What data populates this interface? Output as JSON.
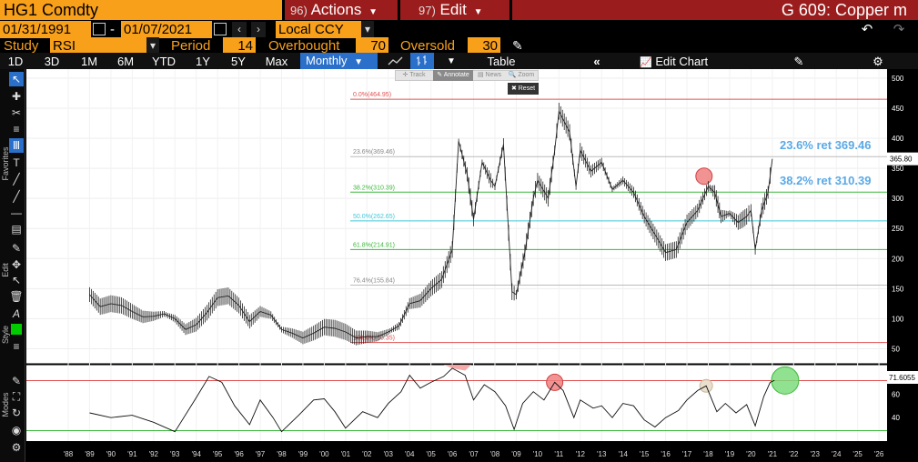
{
  "header": {
    "ticker": "HG1 Comdty",
    "actions_num": "96)",
    "actions_label": "Actions",
    "edit_num": "97)",
    "edit_label": "Edit",
    "title": "G 609: Copper m"
  },
  "range": {
    "start": "01/31/1991",
    "separator": "-",
    "end": "01/07/2021",
    "currency": "Local CCY"
  },
  "study": {
    "label": "Study",
    "name": "RSI",
    "period_label": "Period",
    "period": "14",
    "overbought_label": "Overbought",
    "overbought": "70",
    "oversold_label": "Oversold",
    "oversold": "30"
  },
  "toolbar": {
    "periods": [
      "1D",
      "3D",
      "1M",
      "6M",
      "YTD",
      "1Y",
      "5Y",
      "Max"
    ],
    "frequency": "Monthly",
    "table_label": "Table",
    "edit_chart_label": "Edit Chart"
  },
  "chart_tools": {
    "track": "Track",
    "annotate": "Annotate",
    "news": "News",
    "zoom": "Zoom",
    "reset": "Reset"
  },
  "sidebar": {
    "favorites": "Favorites",
    "edit": "Edit",
    "style": "Style",
    "modes": "Modes"
  },
  "chart_data": {
    "type": "line",
    "price_axis": {
      "ticks": [
        50,
        100,
        150,
        200,
        250,
        300,
        350,
        400,
        450,
        500
      ],
      "range": [
        25,
        515
      ]
    },
    "rsi_axis": {
      "ticks": [
        40,
        60
      ],
      "range": [
        20,
        85
      ]
    },
    "x_ticks": [
      "'88",
      "'89",
      "'90",
      "'91",
      "'92",
      "'93",
      "'94",
      "'95",
      "'96",
      "'97",
      "'98",
      "'99",
      "'00",
      "'01",
      "'02",
      "'03",
      "'04",
      "'05",
      "'06",
      "'07",
      "'08",
      "'09",
      "'10",
      "'11",
      "'12",
      "'13",
      "'14",
      "'15",
      "'16",
      "'17",
      "'18",
      "'19",
      "'20",
      "'21",
      "'22",
      "'23",
      "'24",
      "'25",
      "'26"
    ],
    "last_price": "365.80",
    "last_rsi": "71.6055",
    "fib_levels": [
      {
        "label": "0.0%(464.95)",
        "value": 464.95,
        "color": "#e05050"
      },
      {
        "label": "23.6%(369.46)",
        "value": 369.46,
        "color": "#bbbbbb"
      },
      {
        "label": "38.2%(310.39)",
        "value": 310.39,
        "color": "#3cb83c"
      },
      {
        "label": "50.0%(262.65)",
        "value": 262.65,
        "color": "#40c8d8"
      },
      {
        "label": "61.8%(214.91)",
        "value": 214.91,
        "color": "#3cb83c"
      },
      {
        "label": "76.4%(155.84)",
        "value": 155.84,
        "color": "#bbbbbb"
      },
      {
        "label": "100.0%(60.35)",
        "value": 60.35,
        "color": "#e05050"
      }
    ],
    "annotations": [
      "23.6% ret 369.46",
      "38.2% ret 310.39"
    ],
    "rsi_levels": {
      "overbought": 70,
      "oversold": 30
    },
    "price_series": [
      [
        1989,
        140
      ],
      [
        1989.5,
        120
      ],
      [
        1990,
        125
      ],
      [
        1990.5,
        122
      ],
      [
        1991,
        112
      ],
      [
        1991.5,
        103
      ],
      [
        1992,
        104
      ],
      [
        1992.5,
        108
      ],
      [
        1993,
        100
      ],
      [
        1993.5,
        82
      ],
      [
        1994,
        90
      ],
      [
        1994.5,
        110
      ],
      [
        1995,
        135
      ],
      [
        1995.5,
        138
      ],
      [
        1996,
        122
      ],
      [
        1996.5,
        95
      ],
      [
        1997,
        112
      ],
      [
        1997.5,
        106
      ],
      [
        1998,
        82
      ],
      [
        1998.5,
        76
      ],
      [
        1999,
        68
      ],
      [
        1999.5,
        76
      ],
      [
        2000,
        86
      ],
      [
        2000.5,
        84
      ],
      [
        2001,
        78
      ],
      [
        2001.5,
        68
      ],
      [
        2002,
        70
      ],
      [
        2002.5,
        70
      ],
      [
        2003,
        78
      ],
      [
        2003.5,
        88
      ],
      [
        2004,
        125
      ],
      [
        2004.5,
        130
      ],
      [
        2005,
        150
      ],
      [
        2005.5,
        165
      ],
      [
        2006,
        215
      ],
      [
        2006.3,
        395
      ],
      [
        2006.7,
        340
      ],
      [
        2007,
        265
      ],
      [
        2007.4,
        360
      ],
      [
        2007.8,
        330
      ],
      [
        2008,
        320
      ],
      [
        2008.4,
        390
      ],
      [
        2008.8,
        145
      ],
      [
        2009,
        140
      ],
      [
        2009.4,
        210
      ],
      [
        2009.8,
        300
      ],
      [
        2010,
        330
      ],
      [
        2010.5,
        300
      ],
      [
        2010.8,
        380
      ],
      [
        2011,
        445
      ],
      [
        2011.5,
        410
      ],
      [
        2011.8,
        320
      ],
      [
        2012,
        380
      ],
      [
        2012.5,
        345
      ],
      [
        2013,
        360
      ],
      [
        2013.5,
        315
      ],
      [
        2014,
        330
      ],
      [
        2014.5,
        310
      ],
      [
        2015,
        270
      ],
      [
        2015.5,
        240
      ],
      [
        2016,
        210
      ],
      [
        2016.5,
        215
      ],
      [
        2017,
        260
      ],
      [
        2017.5,
        280
      ],
      [
        2018,
        320
      ],
      [
        2018.3,
        310
      ],
      [
        2018.6,
        270
      ],
      [
        2019,
        275
      ],
      [
        2019.4,
        260
      ],
      [
        2019.8,
        270
      ],
      [
        2020,
        280
      ],
      [
        2020.2,
        215
      ],
      [
        2020.5,
        280
      ],
      [
        2020.8,
        310
      ],
      [
        2021,
        365.8
      ]
    ],
    "rsi_series": [
      [
        1989,
        44
      ],
      [
        1990,
        40
      ],
      [
        1991,
        42
      ],
      [
        1992,
        36
      ],
      [
        1993,
        28
      ],
      [
        1994,
        57
      ],
      [
        1994.6,
        75
      ],
      [
        1995.2,
        70
      ],
      [
        1995.8,
        50
      ],
      [
        1996.5,
        34
      ],
      [
        1997,
        55
      ],
      [
        1997.6,
        40
      ],
      [
        1998,
        28
      ],
      [
        1998.8,
        42
      ],
      [
        1999.5,
        55
      ],
      [
        2000,
        56
      ],
      [
        2000.5,
        45
      ],
      [
        2001,
        31
      ],
      [
        2001.8,
        45
      ],
      [
        2002.5,
        40
      ],
      [
        2003,
        52
      ],
      [
        2003.6,
        62
      ],
      [
        2004,
        76
      ],
      [
        2004.5,
        65
      ],
      [
        2005,
        70
      ],
      [
        2005.6,
        75
      ],
      [
        2006,
        82
      ],
      [
        2006.6,
        76
      ],
      [
        2007,
        55
      ],
      [
        2007.5,
        68
      ],
      [
        2008,
        62
      ],
      [
        2008.5,
        50
      ],
      [
        2008.9,
        30
      ],
      [
        2009.3,
        52
      ],
      [
        2009.8,
        62
      ],
      [
        2010.3,
        55
      ],
      [
        2010.8,
        70
      ],
      [
        2011.2,
        63
      ],
      [
        2011.7,
        40
      ],
      [
        2012,
        55
      ],
      [
        2012.6,
        48
      ],
      [
        2013,
        50
      ],
      [
        2013.5,
        40
      ],
      [
        2014,
        52
      ],
      [
        2014.5,
        50
      ],
      [
        2015,
        38
      ],
      [
        2015.5,
        32
      ],
      [
        2016,
        40
      ],
      [
        2016.6,
        46
      ],
      [
        2017,
        55
      ],
      [
        2017.5,
        63
      ],
      [
        2017.9,
        67
      ],
      [
        2018.4,
        45
      ],
      [
        2018.8,
        52
      ],
      [
        2019.3,
        44
      ],
      [
        2019.8,
        51
      ],
      [
        2020.2,
        33
      ],
      [
        2020.6,
        58
      ],
      [
        2020.9,
        70
      ],
      [
        2021.1,
        71.6
      ]
    ]
  }
}
